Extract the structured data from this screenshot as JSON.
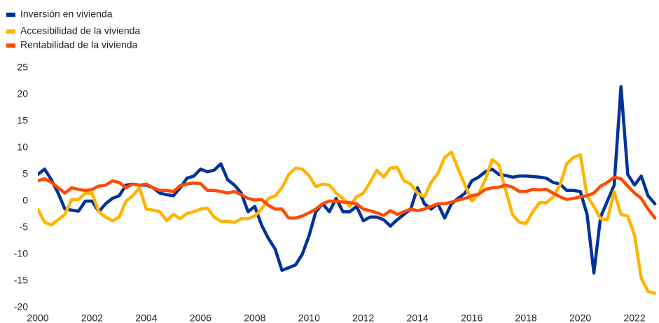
{
  "chart_data": {
    "type": "line",
    "x": [
      2000,
      2000.25,
      2000.5,
      2000.75,
      2001,
      2001.25,
      2001.5,
      2001.75,
      2002,
      2002.25,
      2002.5,
      2002.75,
      2003,
      2003.25,
      2003.5,
      2003.75,
      2004,
      2004.25,
      2004.5,
      2004.75,
      2005,
      2005.25,
      2005.5,
      2005.75,
      2006,
      2006.25,
      2006.5,
      2006.75,
      2007,
      2007.25,
      2007.5,
      2007.75,
      2008,
      2008.25,
      2008.5,
      2008.75,
      2009,
      2009.25,
      2009.5,
      2009.75,
      2010,
      2010.25,
      2010.5,
      2010.75,
      2011,
      2011.25,
      2011.5,
      2011.75,
      2012,
      2012.25,
      2012.5,
      2012.75,
      2013,
      2013.25,
      2013.5,
      2013.75,
      2014,
      2014.25,
      2014.5,
      2014.75,
      2015,
      2015.25,
      2015.5,
      2015.75,
      2016,
      2016.25,
      2016.5,
      2016.75,
      2017,
      2017.25,
      2017.5,
      2017.75,
      2018,
      2018.25,
      2018.5,
      2018.75,
      2019,
      2019.25,
      2019.5,
      2019.75,
      2020,
      2020.25,
      2020.5,
      2020.75,
      2021,
      2021.25,
      2021.5,
      2021.75,
      2022,
      2022.25,
      2022.5,
      2022.75
    ],
    "series": [
      {
        "name": "Inversión en vivienda",
        "color": "#003399",
        "values": [
          5,
          6,
          4,
          1.5,
          -1.5,
          -1.7,
          -1.9,
          0,
          0,
          -2,
          -0.5,
          0.5,
          1,
          3,
          3.2,
          3,
          3,
          2.5,
          1.5,
          1.2,
          1,
          2.5,
          4.3,
          4.7,
          6,
          5.5,
          5.8,
          7,
          4,
          3,
          1.5,
          -2,
          -1,
          -4.5,
          -7,
          -9,
          -13,
          -12.5,
          -12,
          -10,
          -6.5,
          -2,
          -0.5,
          -2,
          0.5,
          -2,
          -2,
          -1,
          -3.7,
          -3,
          -3,
          -3.5,
          -4.7,
          -3.5,
          -2.5,
          -1.5,
          2.5,
          -0.5,
          -1.5,
          -0.5,
          -3.2,
          -0.5,
          0.5,
          1.5,
          3.8,
          4.5,
          5.5,
          6,
          5,
          4.8,
          4.5,
          4.7,
          4.7,
          4.6,
          4.5,
          4.3,
          3.5,
          3.2,
          2,
          2,
          1.8,
          -2.5,
          -13.5,
          -3,
          0,
          3,
          21.5,
          5,
          3,
          4.7,
          1,
          -0.5
        ]
      },
      {
        "name": "Accesibilidad de la vivienda",
        "color": "#ffb400",
        "values": [
          -1.5,
          -4,
          -4.5,
          -3.5,
          -2.5,
          0.3,
          0.3,
          1.5,
          1.5,
          -2,
          -3,
          -3.7,
          -3,
          0,
          1,
          2.5,
          -1.5,
          -1.7,
          -2,
          -3.7,
          -2.5,
          -3.3,
          -2.3,
          -2,
          -1.5,
          -1.3,
          -3,
          -3.8,
          -3.8,
          -4,
          -3.3,
          -3.3,
          -2.8,
          -1.5,
          0.5,
          1,
          2.5,
          5,
          6.2,
          6,
          4.8,
          2.7,
          3.2,
          3,
          1.5,
          0.5,
          -1,
          0.8,
          1.5,
          3.5,
          5.8,
          4.5,
          6.2,
          6.3,
          3.8,
          3.2,
          1.5,
          0.8,
          3.5,
          5.2,
          8.2,
          9.2,
          6,
          3,
          0,
          1.3,
          4,
          7.8,
          6.8,
          2,
          -2.5,
          -4,
          -4.2,
          -2,
          -0.3,
          -0.3,
          0.8,
          3,
          7,
          8.2,
          8.7,
          1,
          -1,
          -3.3,
          -3.5,
          1.8,
          -2.5,
          -2.8,
          -6.5,
          -14.5,
          -17,
          -17.3
        ]
      },
      {
        "name": "Rentabilidad de la vivienda",
        "color": "#ff4b00",
        "values": [
          3.8,
          4.2,
          3.5,
          2.5,
          1.5,
          2.5,
          2.2,
          2,
          2.2,
          2.8,
          3,
          3.8,
          3.5,
          2.5,
          3.2,
          3,
          3.2,
          2.5,
          2,
          2,
          1.8,
          2.9,
          3.2,
          3.4,
          3.3,
          2,
          2,
          1.8,
          1.5,
          1.8,
          1.2,
          0.5,
          0.2,
          0.3,
          -0.8,
          -1.5,
          -1.5,
          -3.2,
          -3.2,
          -2.8,
          -2.2,
          -1.5,
          -0.5,
          0,
          0,
          -0.2,
          -0.3,
          -0.5,
          -1.5,
          -1.8,
          -2.2,
          -2.7,
          -1.8,
          -2.5,
          -2,
          -1.5,
          -1.8,
          -1.5,
          -1,
          -0.5,
          -0.5,
          -0.2,
          0.2,
          0.5,
          1,
          1.3,
          2.2,
          2.5,
          2.6,
          3,
          2.6,
          1.8,
          1.8,
          2.2,
          2.1,
          2.2,
          1.5,
          0.8,
          0.3,
          0.5,
          0.8,
          1,
          1.5,
          2.8,
          3.5,
          4.5,
          4.2,
          2.8,
          1.5,
          0.5,
          -1.5,
          -3.2
        ]
      }
    ],
    "xlim": [
      2000,
      2022.9
    ],
    "xticks": [
      2000,
      2002,
      2004,
      2006,
      2008,
      2010,
      2012,
      2014,
      2016,
      2018,
      2020,
      2022
    ],
    "ylim": [
      -20,
      25
    ],
    "yticks": [
      -20,
      -15,
      -10,
      -5,
      0,
      5,
      10,
      15,
      20,
      25
    ],
    "grid": false
  }
}
